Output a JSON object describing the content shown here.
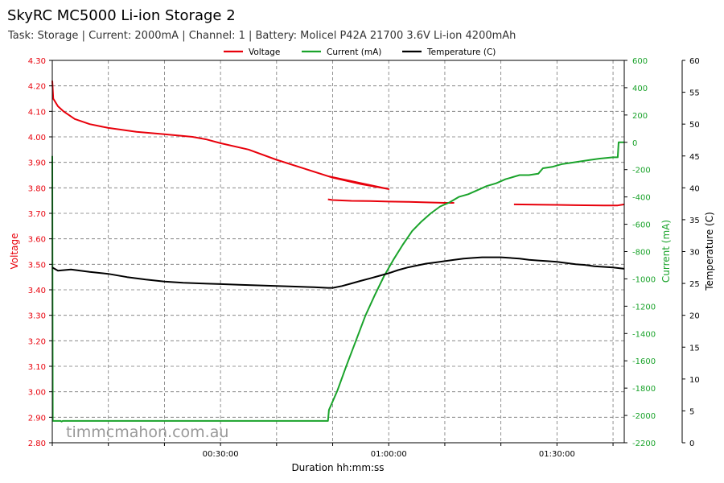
{
  "title": "SkyRC MC5000 Li-ion Storage 2",
  "subtitle": "Task: Storage | Current: 2000mA | Channel: 1 | Battery: Molicel P42A 21700 3.6V Li-ion 4200mAh",
  "watermark": "timmcmahon.com.au",
  "chart_data": {
    "type": "line",
    "xlabel": "Duration hh:mm:ss",
    "x_units": "seconds",
    "xlim": [
      0,
      6120
    ],
    "x_ticks": [
      {
        "value": 1800,
        "label": "00:30:00"
      },
      {
        "value": 3600,
        "label": "01:00:00"
      },
      {
        "value": 5400,
        "label": "01:30:00"
      }
    ],
    "grid": true,
    "legend": "top-center",
    "axes": {
      "voltage": {
        "label": "Voltage",
        "color": "#e8000b",
        "ylim": [
          2.8,
          4.3
        ],
        "ticks": [
          "2.80",
          "2.90",
          "3.00",
          "3.10",
          "3.20",
          "3.30",
          "3.40",
          "3.50",
          "3.60",
          "3.70",
          "3.80",
          "3.90",
          "4.00",
          "4.10",
          "4.20",
          "4.30"
        ]
      },
      "current": {
        "label": "Current (mA)",
        "color": "#1aa32b",
        "ylim": [
          -2200,
          600
        ],
        "ticks": [
          "-2200",
          "-2000",
          "-1800",
          "-1600",
          "-1400",
          "-1200",
          "-1000",
          "-800",
          "-600",
          "-400",
          "-200",
          "0",
          "200",
          "400",
          "600"
        ]
      },
      "temperature": {
        "label": "Temperature (C)",
        "color": "#000000",
        "ylim": [
          0,
          60
        ],
        "ticks": [
          "0",
          "5",
          "10",
          "15",
          "20",
          "25",
          "30",
          "35",
          "40",
          "45",
          "50",
          "55",
          "60"
        ]
      }
    },
    "series": [
      {
        "name": "Voltage",
        "axis": "voltage",
        "color": "#e8000b",
        "segments": [
          [
            [
              0,
              4.22
            ],
            [
              10,
              4.15
            ],
            [
              60,
              4.12
            ],
            [
              120,
              4.1
            ],
            [
              240,
              4.07
            ],
            [
              400,
              4.05
            ],
            [
              600,
              4.035
            ],
            [
              900,
              4.02
            ],
            [
              1200,
              4.01
            ],
            [
              1500,
              4.0
            ],
            [
              1650,
              3.99
            ],
            [
              1800,
              3.975
            ],
            [
              2100,
              3.95
            ],
            [
              2400,
              3.91
            ],
            [
              2700,
              3.875
            ],
            [
              3000,
              3.84
            ],
            [
              3300,
              3.815
            ],
            [
              3600,
              3.795
            ],
            [
              2950,
              3.846
            ],
            [
              2950,
              3.846
            ]
          ],
          [
            [
              2950,
              3.755
            ],
            [
              3000,
              3.752
            ],
            [
              3200,
              3.749
            ],
            [
              3400,
              3.748
            ],
            [
              3600,
              3.746
            ],
            [
              3800,
              3.745
            ],
            [
              4000,
              3.743
            ],
            [
              4200,
              3.741
            ],
            [
              4300,
              3.741
            ]
          ],
          [
            [
              4940,
              3.735
            ],
            [
              5200,
              3.734
            ],
            [
              5400,
              3.733
            ],
            [
              5600,
              3.732
            ],
            [
              5900,
              3.731
            ],
            [
              6050,
              3.731
            ],
            [
              6120,
              3.735
            ]
          ]
        ]
      },
      {
        "name": "Current (mA)",
        "axis": "current",
        "color": "#1aa32b",
        "segments": [
          [
            [
              0,
              -100
            ],
            [
              5,
              -2040
            ],
            [
              90,
              -2040
            ],
            [
              100,
              -2045
            ],
            [
              110,
              -2040
            ],
            [
              600,
              -2040
            ],
            [
              1200,
              -2040
            ],
            [
              1800,
              -2040
            ],
            [
              2400,
              -2040
            ],
            [
              2950,
              -2040
            ],
            [
              2960,
              -1960
            ],
            [
              3050,
              -1820
            ],
            [
              3150,
              -1630
            ],
            [
              3250,
              -1450
            ],
            [
              3350,
              -1270
            ],
            [
              3450,
              -1120
            ],
            [
              3550,
              -980
            ],
            [
              3650,
              -860
            ],
            [
              3750,
              -750
            ],
            [
              3850,
              -650
            ],
            [
              3950,
              -580
            ],
            [
              4050,
              -520
            ],
            [
              4150,
              -470
            ],
            [
              4250,
              -440
            ],
            [
              4350,
              -400
            ],
            [
              4450,
              -380
            ],
            [
              4550,
              -350
            ],
            [
              4650,
              -320
            ],
            [
              4750,
              -300
            ],
            [
              4850,
              -270
            ],
            [
              4900,
              -260
            ],
            [
              5000,
              -240
            ],
            [
              5100,
              -240
            ],
            [
              5200,
              -230
            ],
            [
              5250,
              -190
            ],
            [
              5350,
              -180
            ],
            [
              5450,
              -160
            ],
            [
              5550,
              -150
            ],
            [
              5650,
              -140
            ],
            [
              5750,
              -130
            ],
            [
              5850,
              -120
            ],
            [
              6000,
              -110
            ],
            [
              6050,
              -110
            ],
            [
              6060,
              0
            ],
            [
              6120,
              0
            ]
          ]
        ]
      },
      {
        "name": "Temperature (C)",
        "axis": "temperature",
        "color": "#000000",
        "segments": [
          [
            [
              0,
              27.5
            ],
            [
              60,
              27.0
            ],
            [
              200,
              27.2
            ],
            [
              400,
              26.8
            ],
            [
              600,
              26.5
            ],
            [
              800,
              26.0
            ],
            [
              1000,
              25.6
            ],
            [
              1200,
              25.3
            ],
            [
              1400,
              25.1
            ],
            [
              1600,
              25.0
            ],
            [
              1800,
              24.9
            ],
            [
              2000,
              24.8
            ],
            [
              2200,
              24.7
            ],
            [
              2400,
              24.6
            ],
            [
              2600,
              24.5
            ],
            [
              2800,
              24.4
            ],
            [
              2950,
              24.3
            ],
            [
              3000,
              24.3
            ],
            [
              3100,
              24.6
            ],
            [
              3200,
              25.0
            ],
            [
              3300,
              25.4
            ],
            [
              3400,
              25.8
            ],
            [
              3500,
              26.2
            ],
            [
              3600,
              26.6
            ],
            [
              3700,
              27.1
            ],
            [
              3800,
              27.5
            ],
            [
              3900,
              27.8
            ],
            [
              4000,
              28.1
            ],
            [
              4100,
              28.3
            ],
            [
              4200,
              28.5
            ],
            [
              4300,
              28.7
            ],
            [
              4400,
              28.9
            ],
            [
              4500,
              29.0
            ],
            [
              4600,
              29.1
            ],
            [
              4700,
              29.1
            ],
            [
              4800,
              29.1
            ],
            [
              4900,
              29.0
            ],
            [
              5000,
              28.9
            ],
            [
              5100,
              28.7
            ],
            [
              5200,
              28.6
            ],
            [
              5300,
              28.5
            ],
            [
              5400,
              28.4
            ],
            [
              5500,
              28.2
            ],
            [
              5600,
              28.0
            ],
            [
              5700,
              27.9
            ],
            [
              5800,
              27.7
            ],
            [
              5900,
              27.6
            ],
            [
              6000,
              27.5
            ],
            [
              6120,
              27.3
            ]
          ]
        ]
      }
    ]
  }
}
